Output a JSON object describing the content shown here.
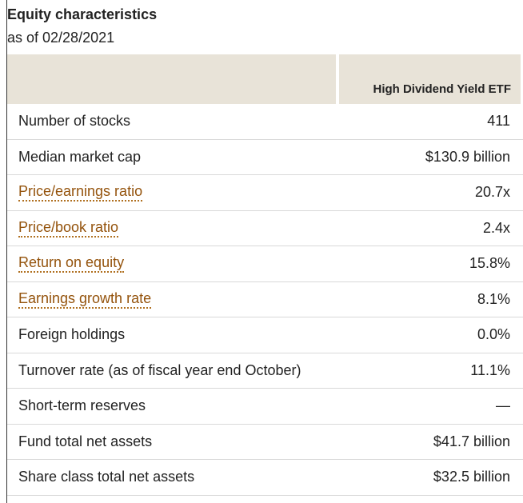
{
  "heading": {
    "title": "Equity characteristics",
    "as_of": "as of 02/28/2021"
  },
  "table": {
    "column_header": "High Dividend Yield ETF",
    "rows": [
      {
        "label": "Number of stocks",
        "value": "411",
        "link": false
      },
      {
        "label": "Median market cap",
        "value": "$130.9 billion",
        "link": false
      },
      {
        "label": "Price/earnings ratio",
        "value": "20.7x",
        "link": true
      },
      {
        "label": "Price/book ratio",
        "value": "2.4x",
        "link": true
      },
      {
        "label": "Return on equity",
        "value": "15.8%",
        "link": true
      },
      {
        "label": "Earnings growth rate",
        "value": "8.1%",
        "link": true
      },
      {
        "label": "Foreign holdings",
        "value": "0.0%",
        "link": false
      },
      {
        "label": "Turnover rate (as of fiscal year end October)",
        "value": "11.1%",
        "link": false
      },
      {
        "label": "Short-term reserves",
        "value": "—",
        "link": false
      },
      {
        "label": "Fund total net assets",
        "value": "$41.7 billion",
        "link": false
      },
      {
        "label": "Share class total net assets",
        "value": "$32.5 billion",
        "link": false
      }
    ]
  },
  "colors": {
    "header_bg": "#e8e3d8",
    "link_color": "#94530c",
    "text_color": "#222222"
  }
}
